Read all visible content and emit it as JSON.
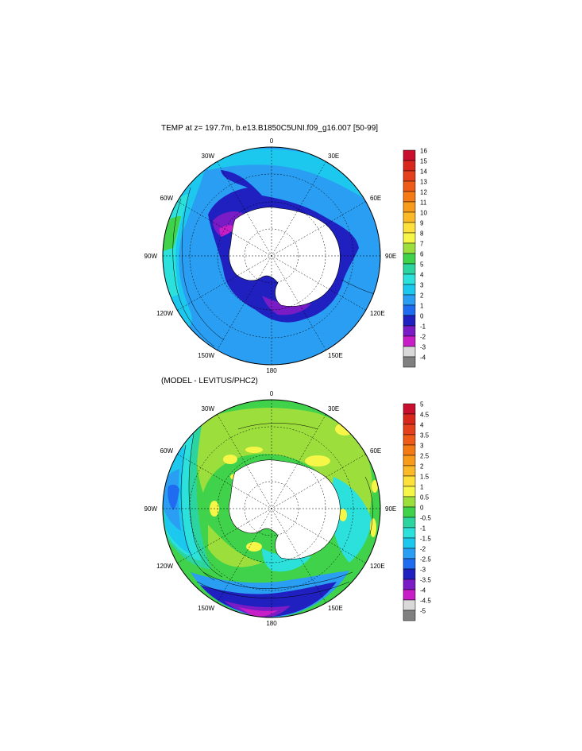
{
  "panels": [
    {
      "title": "TEMP at z= 197.7m, b.e13.B1850C5UNI.f09_g16.007 [50-99]",
      "lon_labels": [
        "0",
        "30E",
        "60E",
        "90E",
        "120E",
        "150E",
        "180",
        "150W",
        "120W",
        "90W",
        "60W",
        "30W"
      ],
      "colorbar": {
        "levels": [
          "16",
          "15",
          "14",
          "13",
          "12",
          "11",
          "10",
          "9",
          "8",
          "7",
          "6",
          "5",
          "4",
          "3",
          "2",
          "1",
          "0",
          "-1",
          "-2",
          "-3",
          "-4"
        ],
        "colors": [
          "#c8102e",
          "#d8281e",
          "#e4401c",
          "#ee5a18",
          "#f47a16",
          "#f89a1a",
          "#fbb928",
          "#fde03a",
          "#f6f648",
          "#9cde3c",
          "#3fd24a",
          "#2cd4a0",
          "#2ce0dc",
          "#1cc8ee",
          "#2a9ef2",
          "#1f6cf0",
          "#2020c0",
          "#7a1cc6",
          "#c81ec8",
          "#d9d9d9",
          "#808080"
        ]
      }
    },
    {
      "title": "(MODEL - LEVITUS/PHC2)",
      "lon_labels": [
        "0",
        "30E",
        "60E",
        "90E",
        "120E",
        "150E",
        "180",
        "150W",
        "120W",
        "90W",
        "60W",
        "30W"
      ],
      "colorbar": {
        "levels": [
          "5",
          "4.5",
          "4",
          "3.5",
          "3",
          "2.5",
          "2",
          "1.5",
          "1",
          "0.5",
          "0",
          "-0.5",
          "-1",
          "-1.5",
          "-2",
          "-2.5",
          "-3",
          "-3.5",
          "-4",
          "-4.5",
          "-5"
        ],
        "colors": [
          "#c8102e",
          "#d8281e",
          "#e4401c",
          "#ee5a18",
          "#f47a16",
          "#f89a1a",
          "#fbb928",
          "#fde03a",
          "#f6f648",
          "#9cde3c",
          "#3fd24a",
          "#2cd4a0",
          "#2ce0dc",
          "#1cc8ee",
          "#2a9ef2",
          "#1f6cf0",
          "#2020c0",
          "#7a1cc6",
          "#c81ec8",
          "#d9d9d9",
          "#808080"
        ]
      }
    }
  ]
}
